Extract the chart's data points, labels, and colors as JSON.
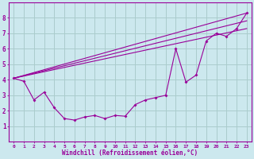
{
  "background_color": "#cce8ee",
  "grid_color": "#aacccc",
  "line_color": "#990099",
  "xlabel": "Windchill (Refroidissement éolien,°C)",
  "xlabel_color": "#990099",
  "tick_color": "#990099",
  "xlim": [
    -0.5,
    23.5
  ],
  "ylim": [
    0,
    9
  ],
  "xticks": [
    0,
    1,
    2,
    3,
    4,
    5,
    6,
    7,
    8,
    9,
    10,
    11,
    12,
    13,
    14,
    15,
    16,
    17,
    18,
    19,
    20,
    21,
    22,
    23
  ],
  "yticks": [
    1,
    2,
    3,
    4,
    5,
    6,
    7,
    8
  ],
  "main_series": {
    "x": [
      0,
      1,
      2,
      3,
      4,
      5,
      6,
      7,
      8,
      9,
      10,
      11,
      12,
      13,
      14,
      15,
      16,
      17,
      18,
      19,
      20,
      21,
      22,
      23
    ],
    "y": [
      4.1,
      3.9,
      2.7,
      3.2,
      2.2,
      1.5,
      1.4,
      1.6,
      1.7,
      1.5,
      1.7,
      1.65,
      2.4,
      2.7,
      2.85,
      3.0,
      6.0,
      3.85,
      4.3,
      6.5,
      7.0,
      6.8,
      7.3,
      8.3
    ]
  },
  "trend_lines": [
    {
      "x": [
        0,
        23
      ],
      "y": [
        4.1,
        8.3
      ]
    },
    {
      "x": [
        0,
        23
      ],
      "y": [
        4.1,
        7.3
      ]
    },
    {
      "x": [
        0,
        23
      ],
      "y": [
        4.1,
        7.8
      ]
    }
  ]
}
